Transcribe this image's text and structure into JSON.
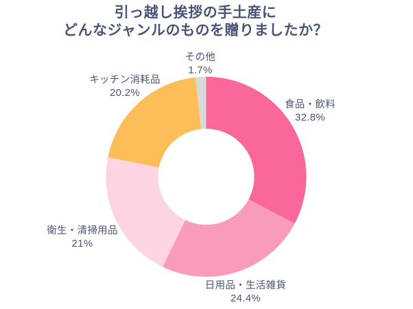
{
  "title": {
    "line1": "引っ越し挨拶の手土産に",
    "line2": "どんなジャンルのものを贈りましたか？"
  },
  "colors": {
    "background": "#FFFFFF",
    "title_text": "#485377",
    "label_text": "#4A5578"
  },
  "chart_data": {
    "type": "pie",
    "variant": "donut",
    "title": "引っ越し挨拶の手土産にどんなジャンルのものを贈りましたか？",
    "start_angle_deg": 0,
    "direction": "clockwise",
    "inner_radius_ratio": 0.48,
    "legend": "none",
    "labels_position": "outside",
    "slices": [
      {
        "label": "食品・飲料",
        "value": 32.8,
        "pct_label": "32.8%",
        "color": "#FA679A"
      },
      {
        "label": "日用品・生活雑貨",
        "value": 24.4,
        "pct_label": "24.4%",
        "color": "#F99BBB"
      },
      {
        "label": "衛生・清掃用品",
        "value": 21,
        "pct_label": "21%",
        "color": "#FDD4E1"
      },
      {
        "label": "キッチン消耗品",
        "value": 20.2,
        "pct_label": "20.2%",
        "color": "#FDBD59"
      },
      {
        "label": "その他",
        "value": 1.7,
        "pct_label": "1.7%",
        "color": "#D8D9D9"
      }
    ]
  }
}
